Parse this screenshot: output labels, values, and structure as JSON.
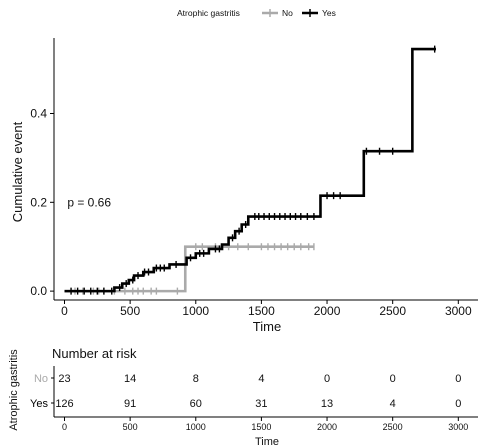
{
  "chart_data": [
    {
      "type": "line",
      "step": true,
      "xlabel": "Time",
      "ylabel": "Cumulative event",
      "xlim": [
        -80,
        3150
      ],
      "ylim": [
        -0.02,
        0.57
      ],
      "xticks": [
        "0",
        "500",
        "1000",
        "1500",
        "2000",
        "2500",
        "3000"
      ],
      "yticks": [
        "0.0",
        "0.2",
        "0.4"
      ],
      "xtick_values": [
        0,
        500,
        1000,
        1500,
        2000,
        2500,
        3000
      ],
      "ytick_values": [
        0.0,
        0.2,
        0.4
      ],
      "annotation": "p = 0.66",
      "annotation_pos": [
        250,
        0.19
      ],
      "legend": {
        "title": "Atrophic gastritis",
        "position": "top",
        "entries": [
          "No",
          "Yes"
        ]
      },
      "series": [
        {
          "name": "No",
          "color": "#aaaaaa",
          "x": [
            0,
            920,
            1900
          ],
          "y": [
            0.0,
            0.1,
            0.1
          ],
          "censor": [
            80,
            140,
            220,
            260,
            300,
            380,
            460,
            520,
            560,
            600,
            660,
            700,
            860,
            1000,
            1050,
            1150,
            1250,
            1320,
            1400,
            1500,
            1550,
            1600,
            1650,
            1700,
            1750,
            1800,
            1860,
            1900
          ]
        },
        {
          "name": "Yes",
          "color": "#000000",
          "x": [
            0,
            380,
            440,
            490,
            530,
            600,
            680,
            800,
            930,
            1000,
            1100,
            1200,
            1250,
            1300,
            1350,
            1400,
            1950,
            2280,
            2650,
            2830
          ],
          "y": [
            0.0,
            0.008,
            0.017,
            0.025,
            0.035,
            0.043,
            0.052,
            0.06,
            0.075,
            0.085,
            0.095,
            0.105,
            0.12,
            0.135,
            0.15,
            0.168,
            0.215,
            0.315,
            0.545,
            0.545
          ],
          "censor": [
            50,
            100,
            150,
            200,
            250,
            300,
            360,
            420,
            470,
            520,
            560,
            610,
            640,
            700,
            730,
            760,
            850,
            960,
            1030,
            1060,
            1150,
            1180,
            1280,
            1330,
            1380,
            1450,
            1480,
            1520,
            1560,
            1600,
            1640,
            1680,
            1720,
            1760,
            1800,
            1850,
            1900,
            2000,
            2050,
            2100,
            2300,
            2400,
            2500,
            2820
          ]
        }
      ]
    },
    {
      "type": "table",
      "title": "Number at risk",
      "ylabel": "Atrophic gastritis",
      "xlabel": "Time",
      "xlim": [
        -80,
        3150
      ],
      "xticks": [
        "0",
        "500",
        "1000",
        "1500",
        "2000",
        "2500",
        "3000"
      ],
      "xtick_values": [
        0,
        500,
        1000,
        1500,
        2000,
        2500,
        3000
      ],
      "rows": [
        {
          "label": "No",
          "color": "#aaaaaa",
          "values": [
            "23",
            "14",
            "8",
            "4",
            "0",
            "0",
            "0"
          ]
        },
        {
          "label": "Yes",
          "color": "#000000",
          "values": [
            "126",
            "91",
            "60",
            "31",
            "13",
            "4",
            "0"
          ]
        }
      ]
    }
  ]
}
